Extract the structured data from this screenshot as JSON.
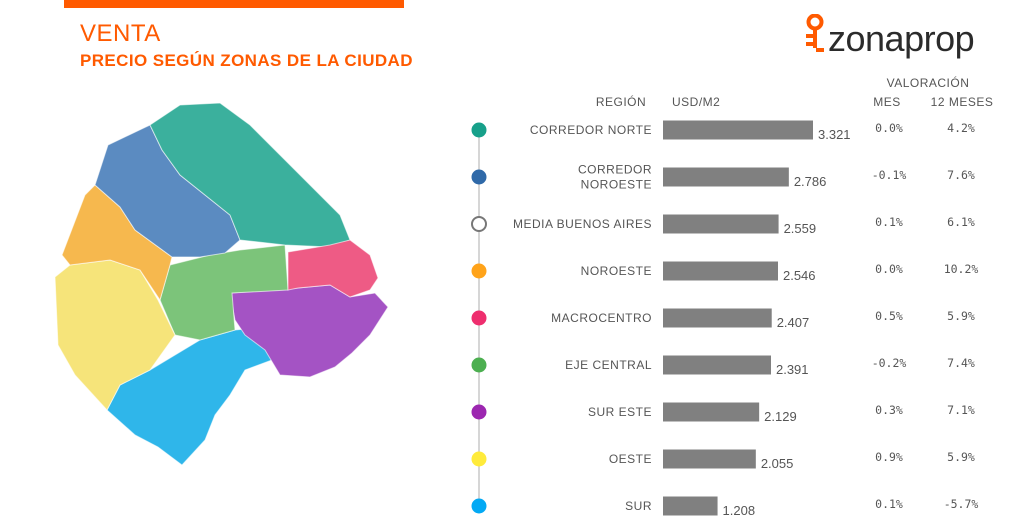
{
  "header": {
    "title": "VENTA",
    "subtitle": "PRECIO SEGÚN ZONAS DE LA CIUDAD",
    "brand": "zonaprop"
  },
  "colors": {
    "accent": "#ff5a00",
    "bar": "#808080"
  },
  "chart_data": {
    "type": "bar",
    "orientation": "horizontal",
    "columns": {
      "region": "REGIÓN",
      "price": "USD/M2",
      "group": "VALORACIÓN",
      "month": "MES",
      "year": "12 MESES"
    },
    "categories": [
      [
        "CORREDOR NORTE"
      ],
      [
        "CORREDOR",
        "NOROESTE"
      ],
      [
        "MEDIA BUENOS AIRES"
      ],
      [
        "NOROESTE"
      ],
      [
        "MACROCENTRO"
      ],
      [
        "EJE CENTRAL"
      ],
      [
        "SUR ESTE"
      ],
      [
        "OESTE"
      ],
      [
        "SUR"
      ]
    ],
    "values": [
      3321,
      2786,
      2559,
      2546,
      2407,
      2391,
      2129,
      2055,
      1208
    ],
    "value_labels": [
      "3.321",
      "2.786",
      "2.559",
      "2.546",
      "2.407",
      "2.391",
      "2.129",
      "2.055",
      "1.208"
    ],
    "mes": [
      "0.0%",
      "-0.1%",
      "0.1%",
      "0.0%",
      "0.5%",
      "-0.2%",
      "0.3%",
      "0.9%",
      "0.1%"
    ],
    "doce_meses": [
      "4.2%",
      "7.6%",
      "6.1%",
      "10.2%",
      "5.9%",
      "7.4%",
      "7.1%",
      "5.9%",
      "-5.7%"
    ],
    "marker_colors": [
      "#17a08a",
      "#2f69a8",
      "#ffffff",
      "#ffa31a",
      "#ee2e6e",
      "#4caf50",
      "#9c27b0",
      "#ffeb3b",
      "#03a9f4"
    ],
    "xlim": [
      0,
      3321
    ]
  }
}
